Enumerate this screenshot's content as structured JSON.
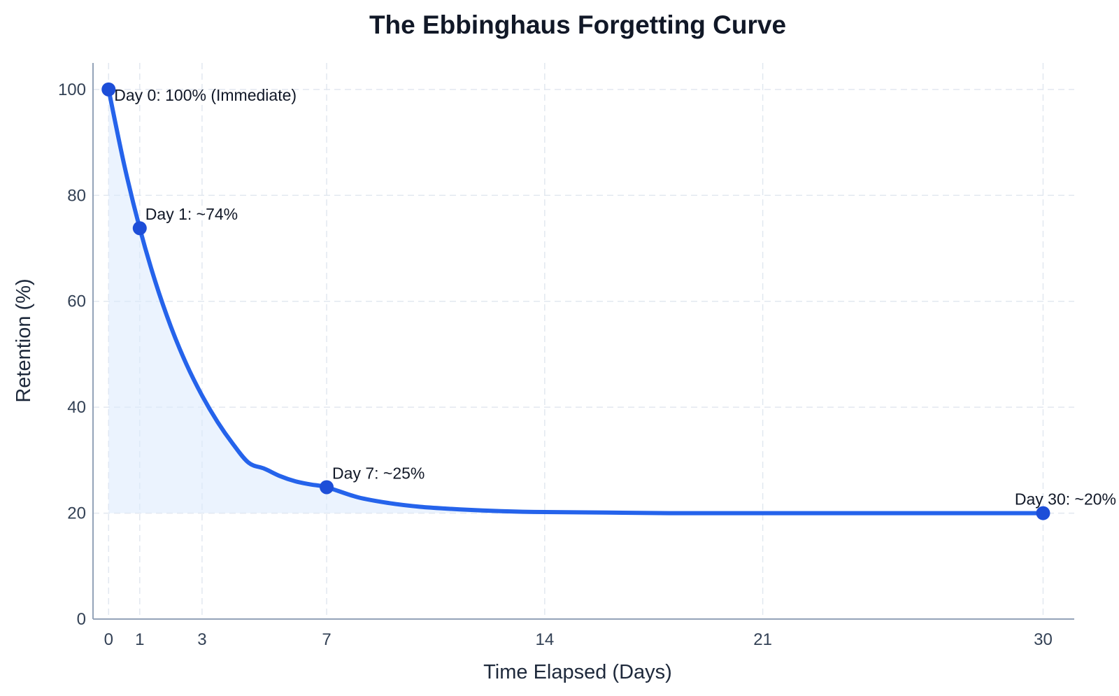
{
  "chart_data": {
    "type": "line",
    "title": "The Ebbinghaus Forgetting Curve",
    "xlabel": "Time Elapsed (Days)",
    "ylabel": "Retention (%)",
    "xlim": [
      -0.5,
      31
    ],
    "ylim": [
      0,
      105
    ],
    "x_ticks": [
      0,
      1,
      3,
      7,
      14,
      21,
      30
    ],
    "y_ticks": [
      0,
      20,
      40,
      60,
      80,
      100
    ],
    "grid": true,
    "fill_under_curve": true,
    "colors": {
      "line": "#2563eb",
      "marker": "#1d4ed8",
      "fill": "#dbeafe"
    },
    "series": [
      {
        "x": [
          0,
          0.5,
          1,
          1.5,
          2,
          2.5,
          3,
          3.5,
          4,
          4.5,
          5,
          5.5,
          6,
          6.5,
          7,
          8,
          9,
          10,
          11,
          12,
          13,
          14,
          16,
          18,
          20,
          22,
          24,
          26,
          28,
          30
        ],
        "values": [
          100,
          85.8,
          73.8,
          63.7,
          55.2,
          48.1,
          42.2,
          37.2,
          33.0,
          29.5,
          28.4,
          27.0,
          26.0,
          25.4,
          24.9,
          23.0,
          21.9,
          21.2,
          20.8,
          20.5,
          20.3,
          20.2,
          20.1,
          20.0,
          20.0,
          20.0,
          20.0,
          20.0,
          20.0,
          20.0
        ]
      }
    ],
    "highlighted_points": [
      {
        "x": 0,
        "y": 100,
        "label": "Day 0: 100% (Immediate)"
      },
      {
        "x": 1,
        "y": 73.8,
        "label": "Day 1: ~74%"
      },
      {
        "x": 7,
        "y": 24.9,
        "label": "Day 7: ~25%"
      },
      {
        "x": 30,
        "y": 20,
        "label": "Day 30: ~20%"
      }
    ]
  }
}
